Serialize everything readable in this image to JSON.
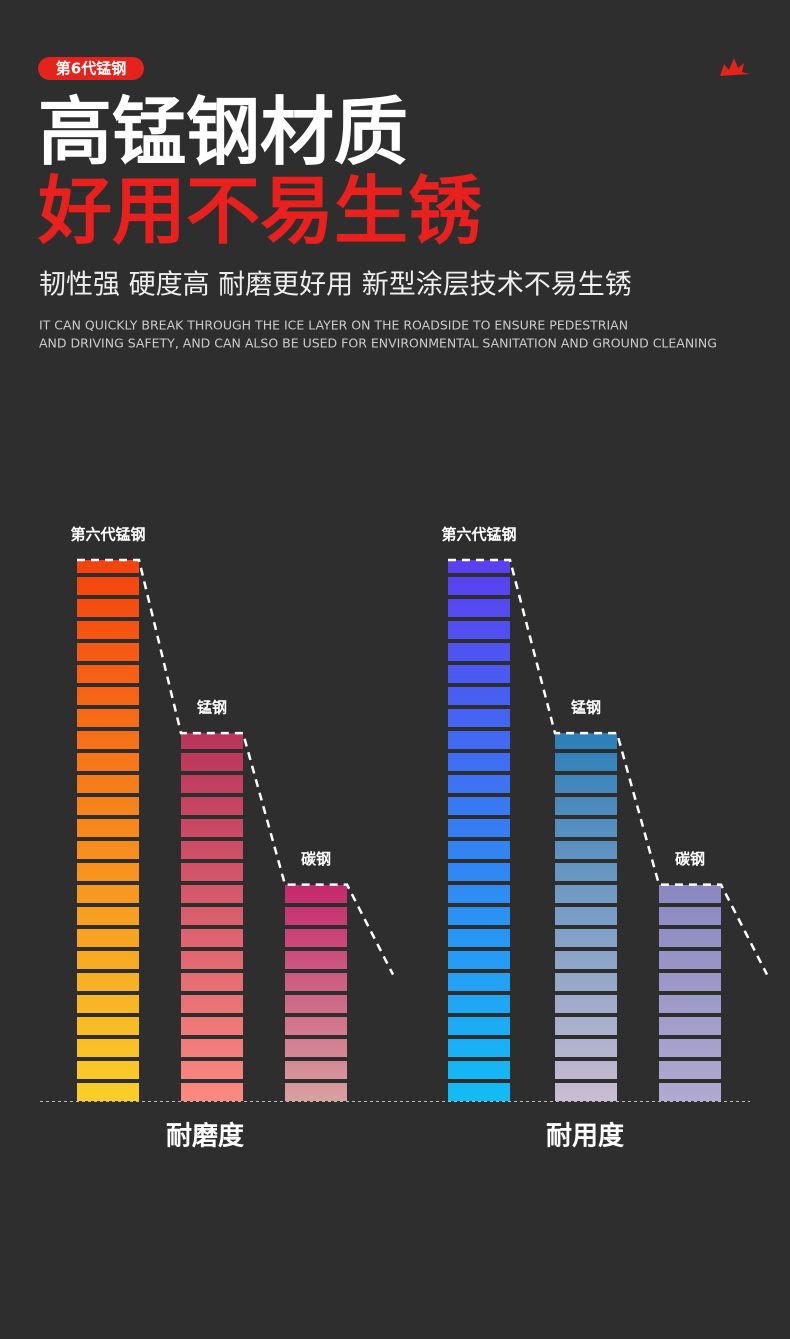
{
  "badge": "第6代锰钢",
  "title_line1": "高锰钢材质",
  "title_line2": "好用不易生锈",
  "subtitle": "韧性强 硬度高 耐磨更好用 新型涂层技术不易生锈",
  "description": [
    "IT CAN QUICKLY BREAK THROUGH THE ICE LAYER ON THE ROADSIDE TO ENSURE PEDESTRIAN",
    "AND DRIVING SAFETY, AND CAN ALSO BE USED FOR ENVIRONMENTAL SANITATION AND GROUND CLEANING"
  ],
  "chart_data": [
    {
      "type": "bar",
      "xlabel": "耐磨度",
      "categories": [
        "第六代锰钢",
        "锰钢",
        "碳钢"
      ],
      "values": [
        25,
        17,
        10
      ],
      "ylim": [
        0,
        25
      ],
      "colors": [
        [
          "#f4420f",
          "#f9cf2a"
        ],
        [
          "#b8335a",
          "#fb8a80"
        ],
        [
          "#c4286b",
          "#d8a0a0"
        ]
      ]
    },
    {
      "type": "bar",
      "xlabel": "耐用度",
      "categories": [
        "第六代锰钢",
        "锰钢",
        "碳钢"
      ],
      "values": [
        25,
        17,
        10
      ],
      "ylim": [
        0,
        25
      ],
      "colors": [
        [
          "#5a3ff0",
          "#12bdf5"
        ],
        [
          "#2c7fb8",
          "#c9bcd0"
        ],
        [
          "#8a88c0",
          "#b0aad0"
        ]
      ]
    }
  ]
}
